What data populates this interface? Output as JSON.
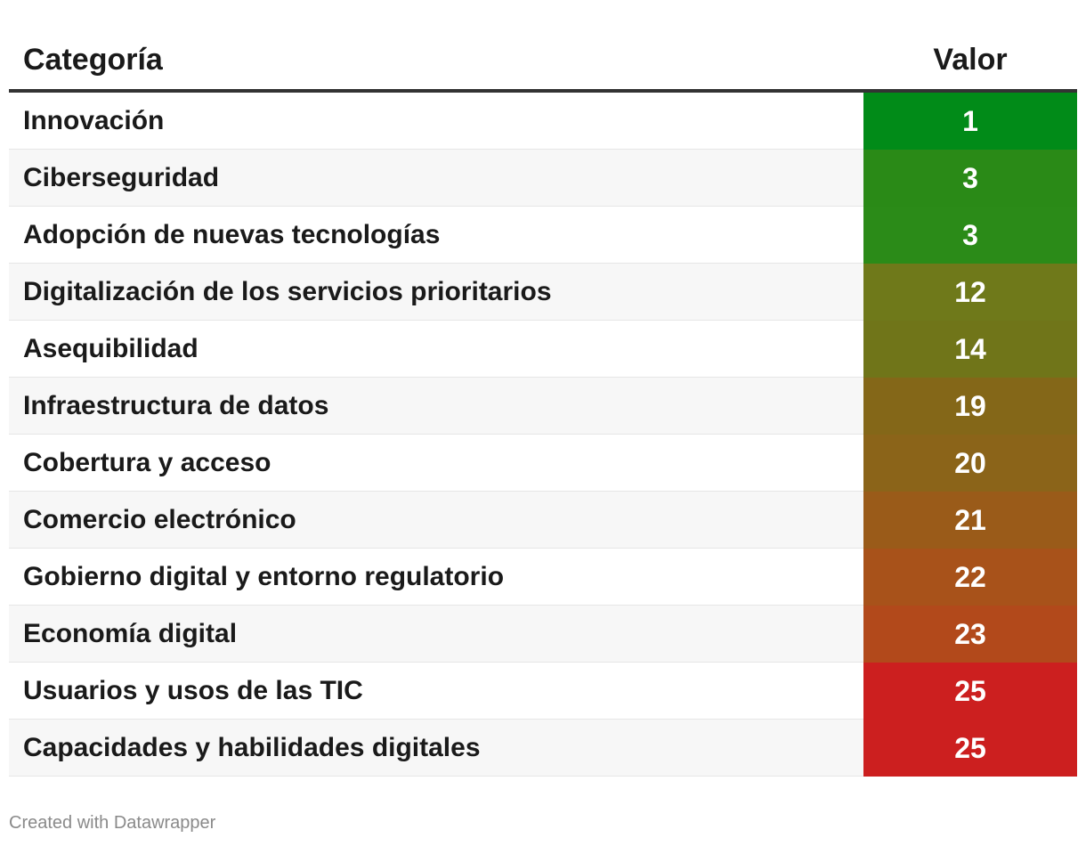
{
  "chart_data": {
    "type": "table",
    "columns": [
      "Categoría",
      "Valor"
    ],
    "rows": [
      {
        "label": "Innovación",
        "value": 1,
        "color": "#018b18"
      },
      {
        "label": "Ciberseguridad",
        "value": 3,
        "color": "#2a8a17"
      },
      {
        "label": "Adopción de nuevas tecnologías",
        "value": 3,
        "color": "#2b8b18"
      },
      {
        "label": "Digitalización de los servicios prioritarios",
        "value": 12,
        "color": "#6f791a"
      },
      {
        "label": "Asequibilidad",
        "value": 14,
        "color": "#707519"
      },
      {
        "label": "Infraestructura de datos",
        "value": 19,
        "color": "#846718"
      },
      {
        "label": "Cobertura y acceso",
        "value": 20,
        "color": "#8b6419"
      },
      {
        "label": "Comercio electrónico",
        "value": 21,
        "color": "#9a5b19"
      },
      {
        "label": "Gobierno digital y entorno regulatorio",
        "value": 22,
        "color": "#a8521a"
      },
      {
        "label": "Economía digital",
        "value": 23,
        "color": "#b2491b"
      },
      {
        "label": "Usuarios y usos de las TIC",
        "value": 25,
        "color": "#cc1f1f"
      },
      {
        "label": "Capacidades y habilidades digitales",
        "value": 25,
        "color": "#cc1f1f"
      }
    ]
  },
  "footer": {
    "credit": "Created with Datawrapper"
  }
}
